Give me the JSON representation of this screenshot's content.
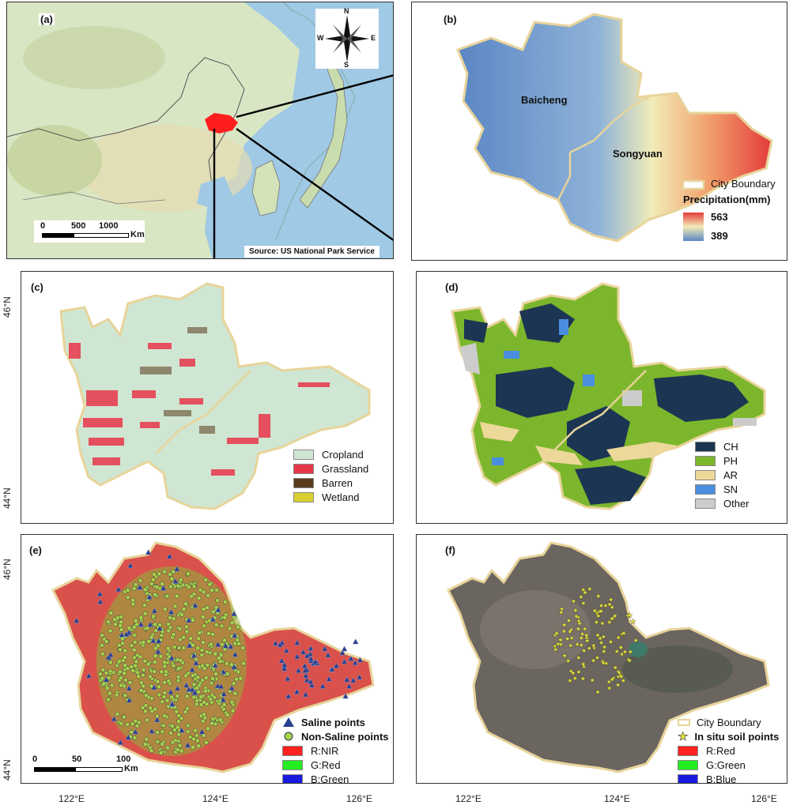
{
  "panels": {
    "a": {
      "label": "(a)"
    },
    "b": {
      "label": "(b)"
    },
    "c": {
      "label": "(c)"
    },
    "d": {
      "label": "(d)"
    },
    "e": {
      "label": "(e)"
    },
    "f": {
      "label": "(f)"
    }
  },
  "compass": {
    "n": "N",
    "s": "S",
    "e": "E",
    "w": "W"
  },
  "scale_a": {
    "t0": "0",
    "t1": "500",
    "t2": "1000",
    "unit": "Km"
  },
  "source": "Source: US National Park Service",
  "b": {
    "city1": "Baicheng",
    "city2": "Songyuan",
    "boundary": "City Boundary",
    "precip_title": "Precipitation(mm)",
    "precip_max": "563",
    "precip_min": "389"
  },
  "c_legend": [
    {
      "label": "Cropland",
      "color": "#cfe6d2"
    },
    {
      "label": "Grassland",
      "color": "#e8364a"
    },
    {
      "label": "Barren",
      "color": "#5a3b1c"
    },
    {
      "label": "Wetland",
      "color": "#d8cf2e"
    }
  ],
  "d_legend": [
    {
      "label": "CH",
      "color": "#1c3553"
    },
    {
      "label": "PH",
      "color": "#7cb62c"
    },
    {
      "label": "AR",
      "color": "#ecd898"
    },
    {
      "label": "SN",
      "color": "#4a8ee0"
    },
    {
      "label": "Other",
      "color": "#cccccc"
    }
  ],
  "e_legend": {
    "saline": "Saline points",
    "nonsaline": "Non-Saline points",
    "bands": [
      {
        "label": "R:NIR",
        "color": "#ff2020"
      },
      {
        "label": "G:Red",
        "color": "#22ee22"
      },
      {
        "label": "B:Green",
        "color": "#1a1ae0"
      }
    ]
  },
  "scale_e": {
    "t0": "0",
    "t1": "50",
    "t2": "100",
    "unit": "Km"
  },
  "f_legend": {
    "boundary": "City Boundary",
    "soil": "In situ soil points",
    "bands": [
      {
        "label": "R:Red",
        "color": "#ff2020"
      },
      {
        "label": "G:Green",
        "color": "#22ee22"
      },
      {
        "label": "B:Blue",
        "color": "#1a1ae0"
      }
    ]
  },
  "axes": {
    "x": [
      "122°E",
      "124°E",
      "126°E"
    ],
    "y_top": "46°N",
    "y_bottom": "44°N"
  }
}
